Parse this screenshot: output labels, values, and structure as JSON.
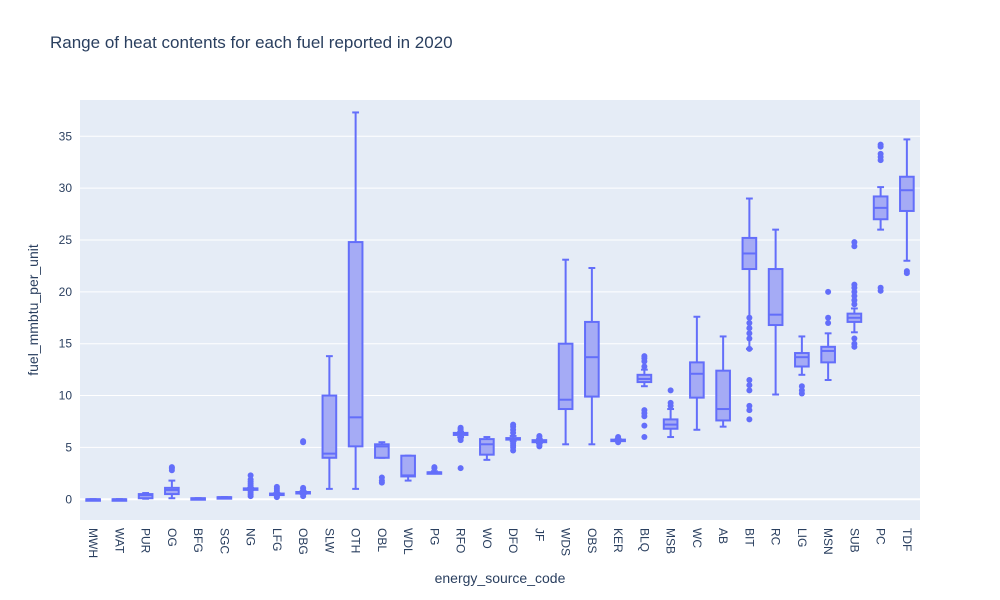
{
  "chart_data": {
    "type": "box",
    "title": "Range of heat contents for each fuel reported in 2020",
    "xlabel": "energy_source_code",
    "ylabel": "fuel_mmbtu_per_unit",
    "ylim": [
      -2,
      38.5
    ],
    "yticks": [
      0,
      5,
      10,
      15,
      20,
      25,
      30,
      35
    ],
    "grid": true,
    "colors": {
      "box_line": "#636efa",
      "box_fill": "#a5abf5",
      "plot_bg": "#e5ecf6",
      "grid": "#ffffff",
      "text": "#2a3f5f"
    },
    "categories": [
      "MWH",
      "WAT",
      "PUR",
      "OG",
      "BFG",
      "SGC",
      "NG",
      "LFG",
      "OBG",
      "SLW",
      "OTH",
      "OBL",
      "WDL",
      "PG",
      "RFO",
      "WO",
      "DFO",
      "JF",
      "WDS",
      "OBS",
      "KER",
      "BLQ",
      "MSB",
      "WC",
      "AB",
      "BIT",
      "RC",
      "LIG",
      "MSN",
      "SUB",
      "PC",
      "TDF"
    ],
    "boxes": [
      {
        "min": 0,
        "q1": 0,
        "median": 0,
        "q3": 0,
        "max": 0,
        "outliers": []
      },
      {
        "min": 0,
        "q1": 0,
        "median": 0,
        "q3": 0,
        "max": 0,
        "outliers": []
      },
      {
        "min": 0.05,
        "q1": 0.1,
        "median": 0.4,
        "q3": 0.5,
        "max": 0.6,
        "outliers": []
      },
      {
        "min": 0.1,
        "q1": 0.5,
        "median": 0.9,
        "q3": 1.1,
        "max": 1.8,
        "outliers": [
          2.8,
          3.0,
          3.1
        ]
      },
      {
        "min": 0.09,
        "q1": 0.09,
        "median": 0.09,
        "q3": 0.1,
        "max": 0.1,
        "outliers": []
      },
      {
        "min": 0.2,
        "q1": 0.2,
        "median": 0.2,
        "q3": 0.2,
        "max": 0.2,
        "outliers": []
      },
      {
        "min": 0.9,
        "q1": 1.0,
        "median": 1.03,
        "q3": 1.05,
        "max": 1.1,
        "outliers": [
          0.3,
          0.5,
          0.7,
          1.3,
          1.5,
          1.7,
          1.9,
          2.3
        ]
      },
      {
        "min": 0.45,
        "q1": 0.5,
        "median": 0.5,
        "q3": 0.55,
        "max": 0.6,
        "outliers": [
          0.2,
          0.3,
          0.8,
          1.0,
          1.2
        ]
      },
      {
        "min": 0.5,
        "q1": 0.6,
        "median": 0.65,
        "q3": 0.7,
        "max": 0.8,
        "outliers": [
          0.3,
          1.0,
          1.1,
          5.5,
          5.6
        ]
      },
      {
        "min": 1.0,
        "q1": 4.0,
        "median": 4.4,
        "q3": 10.0,
        "max": 13.8,
        "outliers": []
      },
      {
        "min": 1.0,
        "q1": 5.1,
        "median": 7.9,
        "q3": 24.8,
        "max": 37.3,
        "outliers": []
      },
      {
        "min": 4.0,
        "q1": 4.0,
        "median": 5.1,
        "q3": 5.3,
        "max": 5.5,
        "outliers": [
          1.6,
          1.8,
          2.1
        ]
      },
      {
        "min": 1.8,
        "q1": 2.2,
        "median": 2.3,
        "q3": 4.2,
        "max": 4.2,
        "outliers": []
      },
      {
        "min": 2.5,
        "q1": 2.5,
        "median": 2.6,
        "q3": 2.6,
        "max": 2.7,
        "outliers": [
          3.0,
          3.1
        ]
      },
      {
        "min": 6.0,
        "q1": 6.2,
        "median": 6.3,
        "q3": 6.4,
        "max": 6.5,
        "outliers": [
          3.0,
          5.7,
          5.9,
          6.7,
          6.8,
          6.9
        ]
      },
      {
        "min": 3.8,
        "q1": 4.3,
        "median": 5.3,
        "q3": 5.8,
        "max": 6.0,
        "outliers": []
      },
      {
        "min": 5.6,
        "q1": 5.75,
        "median": 5.8,
        "q3": 5.9,
        "max": 6.1,
        "outliers": [
          4.7,
          5.0,
          5.2,
          5.4,
          6.4,
          6.7,
          7.0,
          7.2
        ]
      },
      {
        "min": 5.4,
        "q1": 5.5,
        "median": 5.6,
        "q3": 5.7,
        "max": 5.8,
        "outliers": [
          5.1,
          5.2,
          6.0,
          6.1
        ]
      },
      {
        "min": 5.3,
        "q1": 8.7,
        "median": 9.6,
        "q3": 15.0,
        "max": 23.1,
        "outliers": []
      },
      {
        "min": 5.3,
        "q1": 9.9,
        "median": 13.7,
        "q3": 17.1,
        "max": 22.3,
        "outliers": []
      },
      {
        "min": 5.6,
        "q1": 5.65,
        "median": 5.7,
        "q3": 5.75,
        "max": 5.8,
        "outliers": [
          5.5,
          5.9,
          6.0
        ]
      },
      {
        "min": 10.9,
        "q1": 11.3,
        "median": 11.6,
        "q3": 12.0,
        "max": 12.5,
        "outliers": [
          6.0,
          7.1,
          8.0,
          8.3,
          8.6,
          12.8,
          13.3,
          13.6,
          13.8
        ]
      },
      {
        "min": 6.0,
        "q1": 6.8,
        "median": 7.2,
        "q3": 7.7,
        "max": 8.7,
        "outliers": [
          9.0,
          9.3,
          10.5
        ]
      },
      {
        "min": 6.7,
        "q1": 9.8,
        "median": 12.1,
        "q3": 13.2,
        "max": 17.6,
        "outliers": []
      },
      {
        "min": 7.0,
        "q1": 7.6,
        "median": 8.7,
        "q3": 12.4,
        "max": 15.7,
        "outliers": []
      },
      {
        "min": 14.5,
        "q1": 22.2,
        "median": 23.7,
        "q3": 25.2,
        "max": 29.0,
        "outliers": [
          7.7,
          8.6,
          9.0,
          10.5,
          11.0,
          11.5,
          14.5,
          15.5,
          16.0,
          16.5,
          17.0,
          17.5
        ]
      },
      {
        "min": 10.1,
        "q1": 16.8,
        "median": 17.8,
        "q3": 22.2,
        "max": 26.0,
        "outliers": []
      },
      {
        "min": 12.0,
        "q1": 12.8,
        "median": 13.7,
        "q3": 14.1,
        "max": 15.7,
        "outliers": [
          10.2,
          10.5,
          10.9
        ]
      },
      {
        "min": 11.5,
        "q1": 13.2,
        "median": 14.3,
        "q3": 14.7,
        "max": 16.0,
        "outliers": [
          17.0,
          17.5,
          20.0
        ]
      },
      {
        "min": 16.1,
        "q1": 17.1,
        "median": 17.5,
        "q3": 17.9,
        "max": 18.4,
        "outliers": [
          14.7,
          15.0,
          15.5,
          18.8,
          19.2,
          19.6,
          20.0,
          20.4,
          20.7,
          24.4,
          24.8
        ]
      },
      {
        "min": 26.0,
        "q1": 27.0,
        "median": 28.1,
        "q3": 29.2,
        "max": 30.1,
        "outliers": [
          20.1,
          20.4,
          32.7,
          33.0,
          33.3,
          34.0,
          34.2
        ]
      },
      {
        "min": 23.0,
        "q1": 27.8,
        "median": 29.8,
        "q3": 31.1,
        "max": 34.7,
        "outliers": [
          21.8,
          22.0
        ]
      }
    ]
  }
}
